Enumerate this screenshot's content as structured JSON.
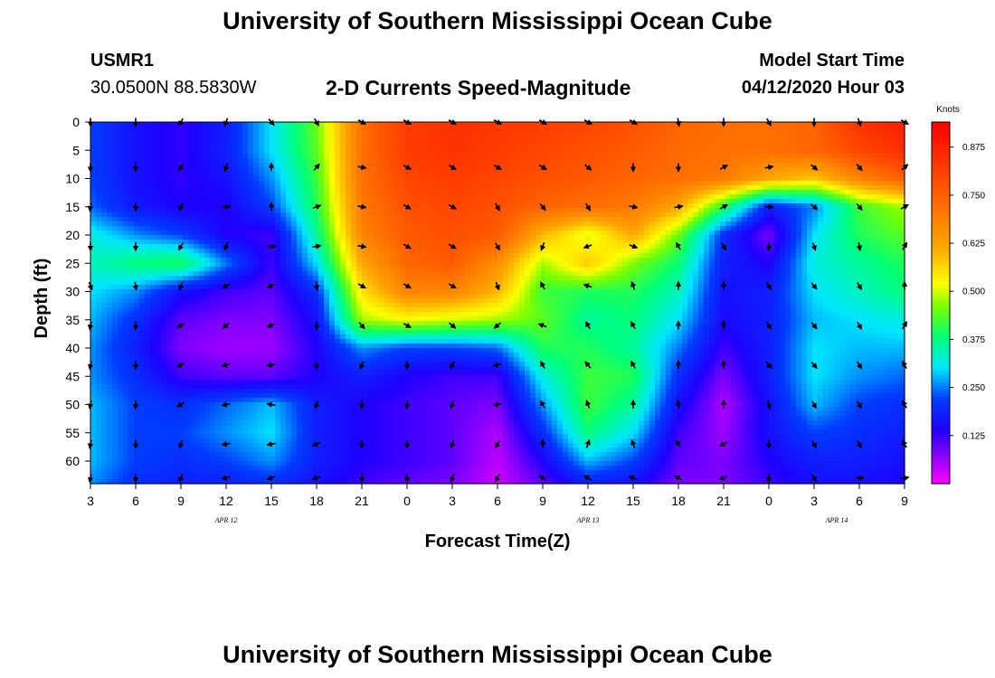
{
  "header": {
    "title": "University of Southern Mississippi Ocean Cube",
    "station": "USMR1",
    "coords": "30.0500N 88.5830W",
    "subtitle": "2-D Currents Speed-Magnitude",
    "start_label": "Model Start Time",
    "start_value": "04/12/2020 Hour 03"
  },
  "footer": {
    "title": "University of Southern Mississippi Ocean Cube"
  },
  "chart_data": {
    "type": "heatmap",
    "title": "2-D Currents Speed-Magnitude",
    "xlabel": "Forecast Time(Z)",
    "ylabel": "Depth (ft)",
    "x_hours": [
      0,
      3,
      6,
      9,
      12,
      15,
      18,
      21,
      24,
      27,
      30,
      33,
      36,
      39,
      42,
      45,
      48,
      51,
      54
    ],
    "x_tick_labels": [
      "3",
      "6",
      "9",
      "12",
      "15",
      "18",
      "21",
      "0",
      "3",
      "6",
      "9",
      "12",
      "15",
      "18",
      "21",
      "0",
      "3",
      "6",
      "9"
    ],
    "date_labels": [
      {
        "label": "APR 12",
        "at_hour": 9
      },
      {
        "label": "APR 13",
        "at_hour": 33
      },
      {
        "label": "APR 14",
        "at_hour": 49.5
      }
    ],
    "depth_ticks": [
      0,
      5,
      10,
      15,
      20,
      25,
      30,
      35,
      40,
      45,
      50,
      55,
      60
    ],
    "ylim": [
      0,
      64
    ],
    "colorbar": {
      "unit": "Knots",
      "range": [
        0,
        0.94
      ],
      "tick_values": [
        0.125,
        0.25,
        0.375,
        0.5,
        0.625,
        0.75,
        0.875
      ],
      "tick_labels": [
        "0.125",
        "0.250",
        "0.375",
        "0.500",
        "0.625",
        "0.750",
        "0.875"
      ]
    },
    "speed_grid": {
      "depths": [
        0,
        5,
        10,
        15,
        20,
        25,
        30,
        35,
        40,
        45,
        50,
        55,
        60,
        64
      ],
      "rows": [
        [
          0.22,
          0.16,
          0.13,
          0.18,
          0.3,
          0.45,
          0.72,
          0.82,
          0.84,
          0.83,
          0.82,
          0.8,
          0.78,
          0.74,
          0.72,
          0.72,
          0.74,
          0.84,
          0.88
        ],
        [
          0.22,
          0.16,
          0.13,
          0.18,
          0.3,
          0.44,
          0.72,
          0.82,
          0.84,
          0.82,
          0.8,
          0.78,
          0.76,
          0.73,
          0.72,
          0.72,
          0.74,
          0.8,
          0.85
        ],
        [
          0.22,
          0.16,
          0.13,
          0.16,
          0.26,
          0.42,
          0.72,
          0.8,
          0.82,
          0.8,
          0.78,
          0.76,
          0.74,
          0.72,
          0.7,
          0.62,
          0.58,
          0.68,
          0.75
        ],
        [
          0.24,
          0.17,
          0.14,
          0.14,
          0.22,
          0.4,
          0.7,
          0.78,
          0.8,
          0.78,
          0.74,
          0.72,
          0.7,
          0.62,
          0.4,
          0.18,
          0.25,
          0.42,
          0.48
        ],
        [
          0.32,
          0.26,
          0.22,
          0.14,
          0.12,
          0.36,
          0.68,
          0.76,
          0.78,
          0.76,
          0.6,
          0.5,
          0.62,
          0.45,
          0.2,
          0.08,
          0.3,
          0.4,
          0.44
        ],
        [
          0.34,
          0.38,
          0.4,
          0.25,
          0.12,
          0.3,
          0.62,
          0.74,
          0.76,
          0.66,
          0.48,
          0.58,
          0.46,
          0.38,
          0.18,
          0.14,
          0.32,
          0.36,
          0.4
        ],
        [
          0.3,
          0.26,
          0.16,
          0.12,
          0.1,
          0.2,
          0.55,
          0.68,
          0.68,
          0.6,
          0.42,
          0.4,
          0.4,
          0.34,
          0.16,
          0.18,
          0.3,
          0.34,
          0.38
        ],
        [
          0.28,
          0.2,
          0.1,
          0.08,
          0.08,
          0.16,
          0.48,
          0.52,
          0.5,
          0.48,
          0.44,
          0.36,
          0.38,
          0.3,
          0.15,
          0.18,
          0.28,
          0.3,
          0.32
        ],
        [
          0.26,
          0.18,
          0.08,
          0.06,
          0.06,
          0.14,
          0.26,
          0.22,
          0.22,
          0.24,
          0.4,
          0.4,
          0.36,
          0.25,
          0.12,
          0.18,
          0.3,
          0.28,
          0.28
        ],
        [
          0.26,
          0.2,
          0.12,
          0.1,
          0.1,
          0.14,
          0.18,
          0.14,
          0.12,
          0.12,
          0.32,
          0.42,
          0.4,
          0.2,
          0.08,
          0.18,
          0.3,
          0.26,
          0.24
        ],
        [
          0.28,
          0.22,
          0.2,
          0.24,
          0.28,
          0.18,
          0.14,
          0.12,
          0.1,
          0.08,
          0.26,
          0.42,
          0.36,
          0.16,
          0.05,
          0.16,
          0.28,
          0.22,
          0.2
        ],
        [
          0.28,
          0.22,
          0.22,
          0.26,
          0.3,
          0.18,
          0.14,
          0.12,
          0.1,
          0.05,
          0.2,
          0.38,
          0.3,
          0.12,
          0.06,
          0.16,
          0.22,
          0.2,
          0.18
        ],
        [
          0.28,
          0.22,
          0.2,
          0.22,
          0.26,
          0.18,
          0.14,
          0.12,
          0.1,
          0.04,
          0.14,
          0.28,
          0.22,
          0.1,
          0.08,
          0.14,
          0.18,
          0.18,
          0.16
        ],
        [
          0.26,
          0.2,
          0.18,
          0.18,
          0.2,
          0.16,
          0.12,
          0.1,
          0.08,
          0.03,
          0.1,
          0.18,
          0.16,
          0.08,
          0.08,
          0.12,
          0.16,
          0.16,
          0.14
        ]
      ]
    },
    "arrow_depths": [
      0,
      8,
      15,
      22,
      29,
      36,
      43,
      50,
      57,
      63
    ],
    "arrow_directions_deg": [
      [
        180,
        180,
        210,
        200,
        140,
        150,
        120,
        120,
        120,
        120,
        120,
        120,
        120,
        170,
        180,
        150,
        180,
        160,
        120
      ],
      [
        180,
        180,
        220,
        200,
        0,
        40,
        100,
        120,
        120,
        120,
        120,
        130,
        180,
        180,
        60,
        80,
        130,
        140,
        50
      ],
      [
        190,
        180,
        200,
        90,
        0,
        70,
        100,
        120,
        120,
        150,
        140,
        150,
        100,
        80,
        60,
        90,
        130,
        140,
        60
      ],
      [
        180,
        180,
        210,
        200,
        90,
        80,
        100,
        120,
        120,
        150,
        200,
        250,
        110,
        330,
        150,
        180,
        160,
        170,
        30
      ],
      [
        160,
        170,
        200,
        240,
        250,
        170,
        120,
        120,
        120,
        160,
        330,
        290,
        340,
        0,
        0,
        150,
        140,
        150,
        0
      ],
      [
        190,
        180,
        240,
        230,
        250,
        180,
        140,
        120,
        130,
        230,
        290,
        330,
        330,
        0,
        0,
        150,
        140,
        150,
        30
      ],
      [
        190,
        180,
        240,
        260,
        260,
        180,
        200,
        180,
        210,
        260,
        330,
        320,
        330,
        0,
        0,
        140,
        140,
        150,
        330
      ],
      [
        190,
        180,
        240,
        260,
        280,
        200,
        180,
        180,
        200,
        260,
        330,
        340,
        0,
        350,
        0,
        170,
        150,
        150,
        330
      ],
      [
        190,
        180,
        200,
        260,
        260,
        250,
        180,
        180,
        200,
        210,
        0,
        20,
        340,
        330,
        240,
        180,
        150,
        150,
        330
      ],
      [
        190,
        180,
        200,
        260,
        250,
        250,
        180,
        180,
        200,
        210,
        300,
        300,
        290,
        300,
        250,
        180,
        150,
        90,
        80
      ]
    ]
  }
}
